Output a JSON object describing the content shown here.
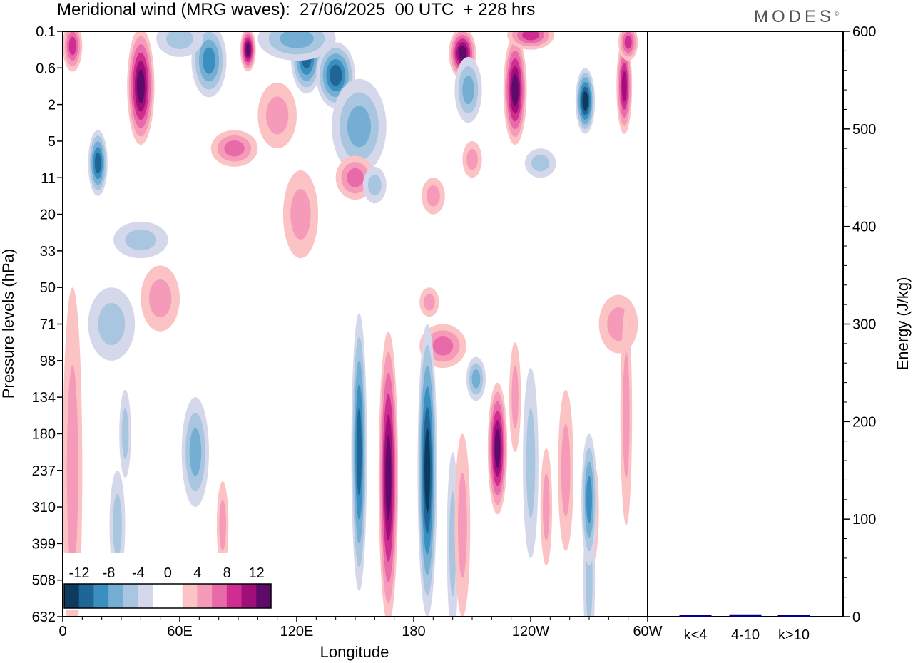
{
  "title": "Meridional wind (MRG waves):  27/06/2025  00 UTC  + 228 hrs",
  "logo": "MODES",
  "logo_mark": "©",
  "chart_data": [
    {
      "type": "heatmap",
      "title": "Meridional wind (MRG waves):  27/06/2025  00 UTC  + 228 hrs",
      "xlabel": "Longitude",
      "ylabel": "Pressure levels (hPa)",
      "x_ticks": [
        "0",
        "60E",
        "120E",
        "180",
        "120W",
        "60W"
      ],
      "y_ticks": [
        "0.1",
        "0.6",
        "2",
        "5",
        "11",
        "20",
        "33",
        "50",
        "71",
        "98",
        "134",
        "180",
        "237",
        "310",
        "399",
        "508",
        "632"
      ],
      "colorbar": {
        "labels": [
          "-12",
          "-8",
          "-4",
          "0",
          "4",
          "8",
          "12"
        ],
        "colors": [
          "#0d3b5e",
          "#1f6696",
          "#3b8fc0",
          "#74aed3",
          "#a8c6e0",
          "#d4d8ea",
          "#ffffff",
          "#ffffff",
          "#fbc3c3",
          "#f59ab8",
          "#e86aa8",
          "#cf2d8f",
          "#a00f79",
          "#5e0a6a"
        ]
      },
      "features": [
        {
          "lon": 40,
          "level": 1.5,
          "value": 14,
          "rx": 7,
          "ry": 1.6
        },
        {
          "lon": 5,
          "level": 0.4,
          "value": 9,
          "rx": 5,
          "ry": 0.7
        },
        {
          "lon": 95,
          "level": 0.5,
          "value": 13,
          "rx": 4,
          "ry": 0.6
        },
        {
          "lon": 18,
          "level": 3.6,
          "value": -10,
          "rx": 5,
          "ry": 0.9
        },
        {
          "lon": 75,
          "level": 0.8,
          "value": -9,
          "rx": 9,
          "ry": 1.0
        },
        {
          "lon": 125,
          "level": 0.7,
          "value": -10,
          "rx": 8,
          "ry": 1.0
        },
        {
          "lon": 140,
          "level": 1.2,
          "value": -11,
          "rx": 10,
          "ry": 0.9
        },
        {
          "lon": 152,
          "level": 2.6,
          "value": -7,
          "rx": 14,
          "ry": 1.3
        },
        {
          "lon": 205,
          "level": 0.6,
          "value": 12,
          "rx": 7,
          "ry": 0.7
        },
        {
          "lon": 232,
          "level": 1.6,
          "value": 14,
          "rx": 6,
          "ry": 1.5
        },
        {
          "lon": 268,
          "level": 1.9,
          "value": -12,
          "rx": 5,
          "ry": 0.9
        },
        {
          "lon": 288,
          "level": 1.5,
          "value": 11,
          "rx": 4,
          "ry": 1.3
        },
        {
          "lon": 208,
          "level": 1.6,
          "value": -7,
          "rx": 7,
          "ry": 0.9
        },
        {
          "lon": 240,
          "level": 0.1,
          "value": 8,
          "rx": 12,
          "ry": 0.4
        },
        {
          "lon": 290,
          "level": 0.3,
          "value": 9,
          "rx": 5,
          "ry": 0.5
        },
        {
          "lon": 120,
          "level": 0.2,
          "value": -7,
          "rx": 20,
          "ry": 0.6
        },
        {
          "lon": 60,
          "level": 0.2,
          "value": -5,
          "rx": 12,
          "ry": 0.5
        },
        {
          "lon": 110,
          "level": 2.3,
          "value": 5,
          "rx": 10,
          "ry": 0.9
        },
        {
          "lon": 150,
          "level": 4.0,
          "value": 6,
          "rx": 10,
          "ry": 0.6
        },
        {
          "lon": 88,
          "level": 3.2,
          "value": 6,
          "rx": 12,
          "ry": 0.5
        },
        {
          "lon": 160,
          "level": 4.2,
          "value": -5,
          "rx": 6,
          "ry": 0.5
        },
        {
          "lon": 210,
          "level": 3.5,
          "value": 5,
          "rx": 5,
          "ry": 0.5
        },
        {
          "lon": 245,
          "level": 3.6,
          "value": -4,
          "rx": 8,
          "ry": 0.4
        },
        {
          "lon": 122,
          "level": 5.0,
          "value": 4,
          "rx": 9,
          "ry": 1.2
        },
        {
          "lon": 40,
          "level": 5.7,
          "value": -5,
          "rx": 14,
          "ry": 0.5
        },
        {
          "lon": 190,
          "level": 4.5,
          "value": 4,
          "rx": 6,
          "ry": 0.5
        },
        {
          "lon": 50,
          "level": 7.3,
          "value": 4,
          "rx": 10,
          "ry": 0.9
        },
        {
          "lon": 25,
          "level": 8.0,
          "value": -5,
          "rx": 12,
          "ry": 1.0
        },
        {
          "lon": 188,
          "level": 7.4,
          "value": 4,
          "rx": 5,
          "ry": 0.4
        },
        {
          "lon": 285,
          "level": 8.0,
          "value": 4,
          "rx": 10,
          "ry": 0.8
        },
        {
          "lon": 195,
          "level": 8.6,
          "value": 6,
          "rx": 12,
          "ry": 0.6
        },
        {
          "lon": 5,
          "level": 12.0,
          "value": 4,
          "rx": 5,
          "ry": 5.0
        },
        {
          "lon": 32,
          "level": 11.0,
          "value": -4,
          "rx": 3,
          "ry": 1.2
        },
        {
          "lon": 28,
          "level": 13.5,
          "value": -4,
          "rx": 4,
          "ry": 1.5
        },
        {
          "lon": 68,
          "level": 11.5,
          "value": -6,
          "rx": 7,
          "ry": 1.5
        },
        {
          "lon": 82,
          "level": 13.5,
          "value": 4,
          "rx": 3,
          "ry": 1.2
        },
        {
          "lon": 152,
          "level": 11.5,
          "value": -10,
          "rx": 4,
          "ry": 3.8
        },
        {
          "lon": 167,
          "level": 12.2,
          "value": 15,
          "rx": 5,
          "ry": 4.0
        },
        {
          "lon": 187,
          "level": 12.0,
          "value": -14,
          "rx": 5,
          "ry": 4.0
        },
        {
          "lon": 200,
          "level": 14.0,
          "value": -4,
          "rx": 3,
          "ry": 2.5
        },
        {
          "lon": 205,
          "level": 13.5,
          "value": 4,
          "rx": 4,
          "ry": 2.5
        },
        {
          "lon": 223,
          "level": 11.4,
          "value": 12,
          "rx": 5,
          "ry": 1.8
        },
        {
          "lon": 212,
          "level": 9.5,
          "value": -6,
          "rx": 5,
          "ry": 0.6
        },
        {
          "lon": 240,
          "level": 11.8,
          "value": -5,
          "rx": 4,
          "ry": 2.6
        },
        {
          "lon": 258,
          "level": 12.0,
          "value": 4,
          "rx": 4,
          "ry": 2.2
        },
        {
          "lon": 248,
          "level": 13.0,
          "value": 5,
          "rx": 3,
          "ry": 1.6
        },
        {
          "lon": 272,
          "level": 13.1,
          "value": 4,
          "rx": 3,
          "ry": 1.4
        },
        {
          "lon": 270,
          "level": 15.0,
          "value": -4,
          "rx": 3,
          "ry": 2.0
        },
        {
          "lon": 289,
          "level": 10.5,
          "value": 4,
          "rx": 3,
          "ry": 3.0
        },
        {
          "lon": 270,
          "level": 12.8,
          "value": -9,
          "rx": 4,
          "ry": 1.8
        },
        {
          "lon": 232,
          "level": 10.0,
          "value": 4,
          "rx": 3,
          "ry": 1.5
        }
      ]
    },
    {
      "type": "bar",
      "categories": [
        "k<4",
        "4-10",
        "k>10"
      ],
      "values": [
        0,
        2,
        0
      ],
      "ylabel": "Energy (J/kg)",
      "ylim": [
        0,
        600
      ],
      "y_ticks": [
        0,
        100,
        200,
        300,
        400,
        500,
        600
      ],
      "bar_color": "#00008b"
    }
  ]
}
